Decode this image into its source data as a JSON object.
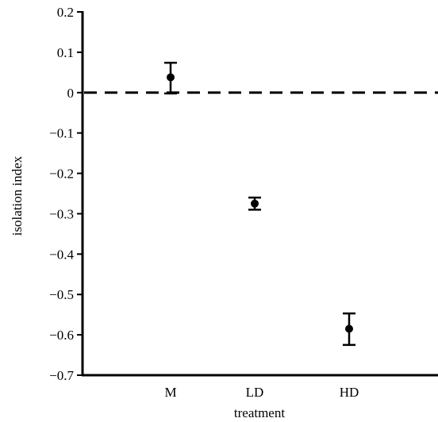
{
  "chart_data": {
    "type": "scatter",
    "xlabel": "treatment",
    "ylabel": "isolation index",
    "categories": [
      "M",
      "LD",
      "HD"
    ],
    "ylim": [
      -0.7,
      0.2
    ],
    "yticks": [
      "0.2",
      "0.1",
      "0",
      "−0.1",
      "−0.2",
      "−0.3",
      "−0.4",
      "−0.5",
      "−0.6",
      "−0.7"
    ],
    "ytick_values": [
      0.2,
      0.1,
      0,
      -0.1,
      -0.2,
      -0.3,
      -0.4,
      -0.5,
      -0.6,
      -0.7
    ],
    "reference_line": {
      "y": 0,
      "style": "dashed"
    },
    "series": [
      {
        "points": [
          {
            "category": "M",
            "y": 0.038,
            "err_low": -0.002,
            "err_high": 0.074
          },
          {
            "category": "LD",
            "y": -0.275,
            "err_low": -0.29,
            "err_high": -0.26
          },
          {
            "category": "HD",
            "y": -0.585,
            "err_low": -0.625,
            "err_high": -0.547
          }
        ]
      }
    ],
    "grid": false,
    "legend": "none"
  }
}
